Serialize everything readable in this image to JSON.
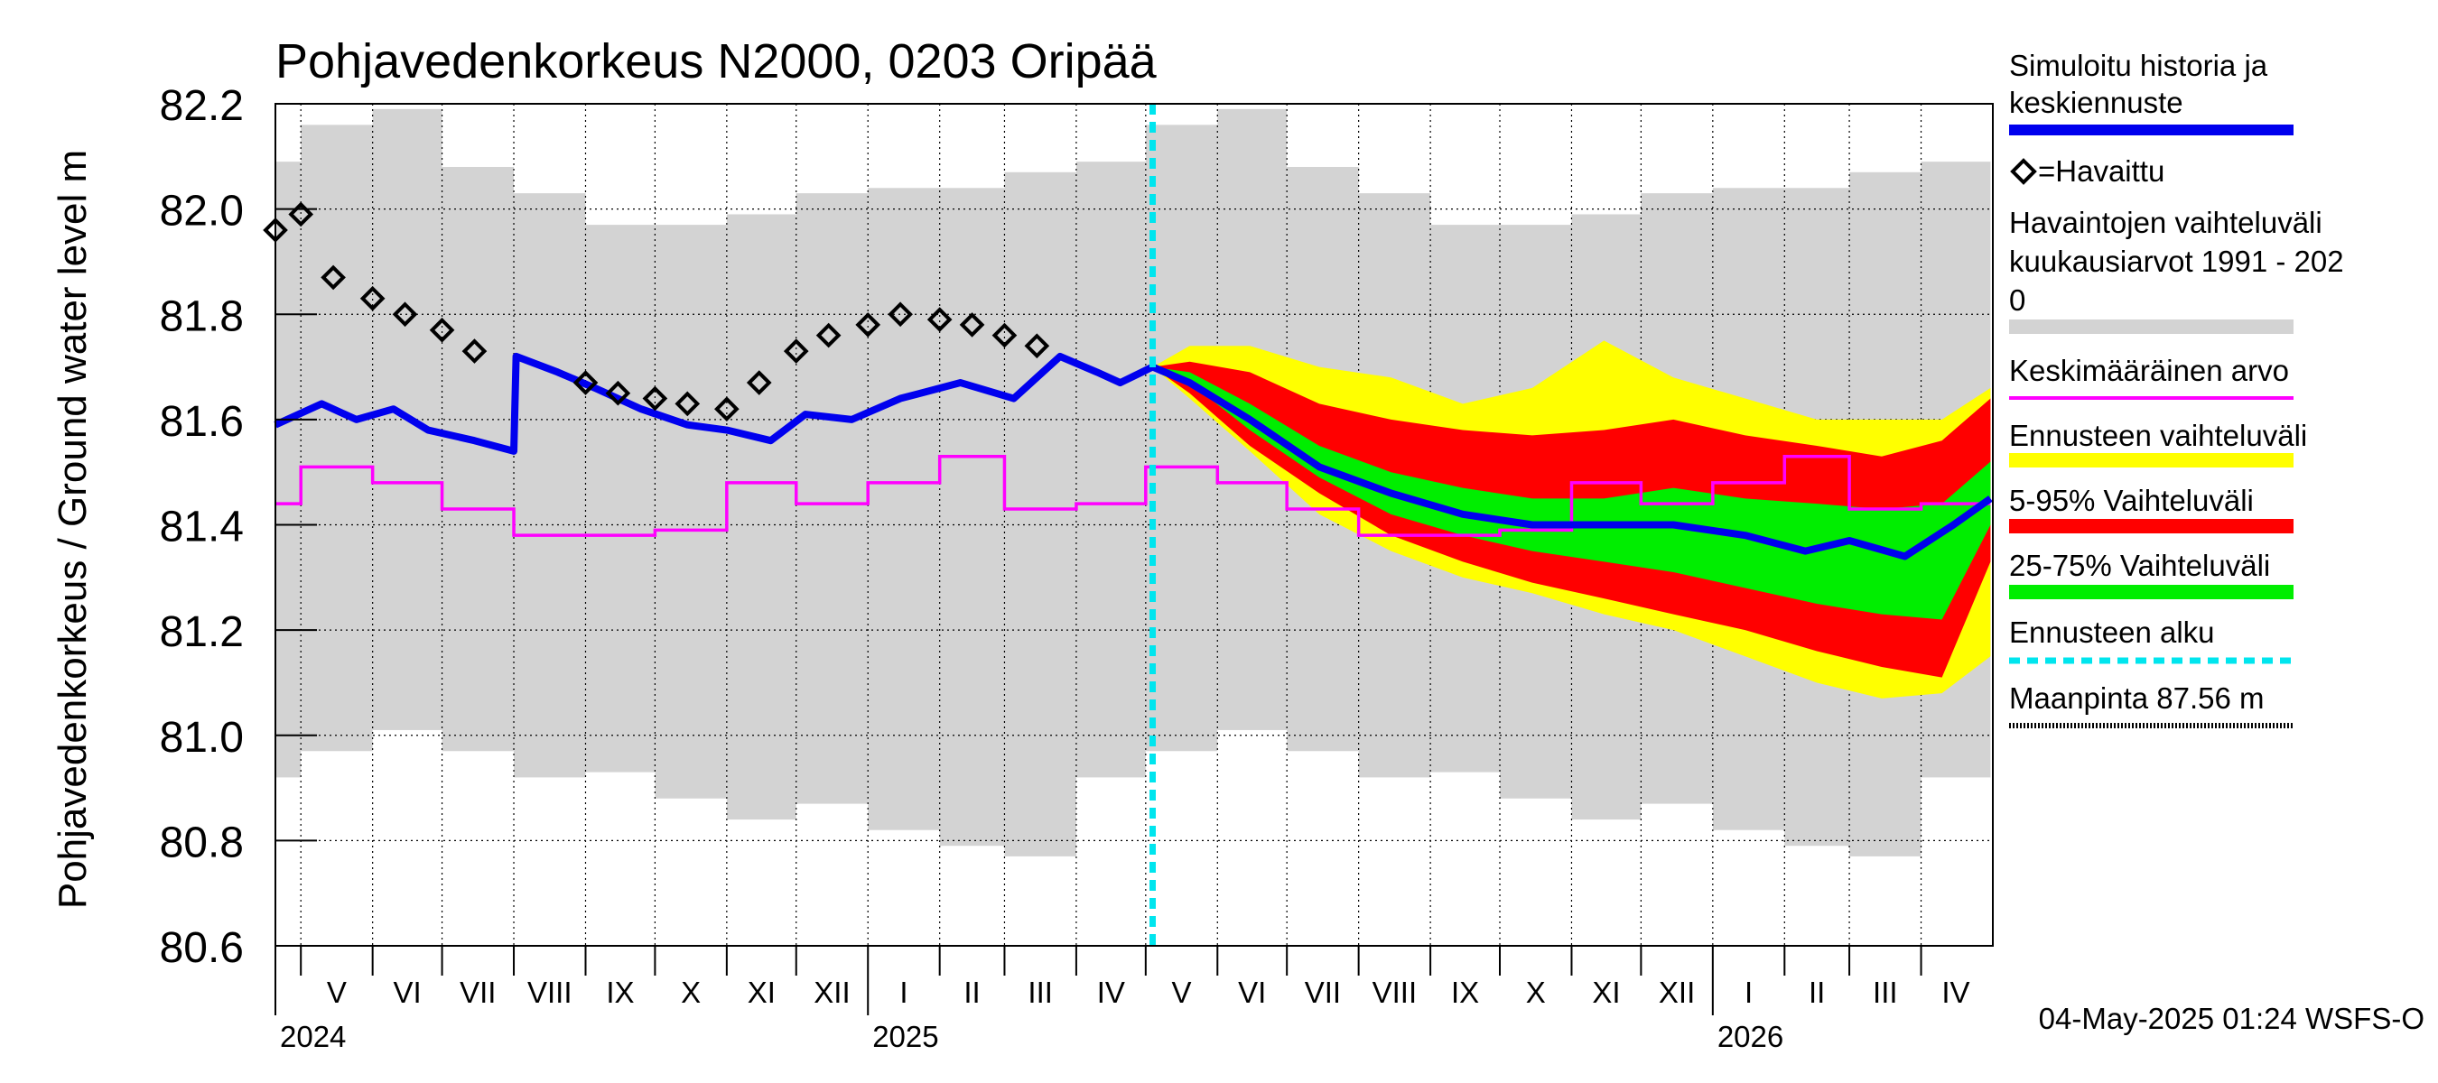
{
  "chart_data": {
    "type": "area",
    "title": "Pohjavedenkorkeus N2000, 0203 Oripää",
    "ylabel": "Pohjavedenkorkeus / Ground water level   m",
    "ylim": [
      80.6,
      82.2
    ],
    "yticks": [
      "80.6",
      "80.8",
      "81.0",
      "81.2",
      "81.4",
      "81.6",
      "81.8",
      "82.0",
      "82.2"
    ],
    "x_range": [
      "2024-04-20",
      "2026-05-02"
    ],
    "month_labels": [
      "V",
      "VI",
      "VII",
      "VIII",
      "IX",
      "X",
      "XI",
      "XII",
      "I",
      "II",
      "III",
      "IV",
      "V",
      "VI",
      "VII",
      "VIII",
      "IX",
      "X",
      "XI",
      "XII",
      "I",
      "II",
      "III",
      "IV"
    ],
    "year_labels": [
      "2024",
      "2025",
      "2026"
    ],
    "forecast_start": "2025-05-04",
    "footer": "04-May-2025 01:24 WSFS-O",
    "grid": true,
    "legend_position": "right",
    "legend": {
      "sim": "Simuloitu historia ja keskiennuste",
      "obs": "=Havaittu",
      "range1": "Havaintojen vaihteluväli",
      "range2": " kuukausiarvot 1991 - 202",
      "range3": "0",
      "mean": "Keskimääräinen arvo",
      "fc": "Ennusteen vaihteluväli",
      "p595": "5-95% Vaihteluväli",
      "p2575": "25-75% Vaihteluväli",
      "fcstart": "Ennusteen alku",
      "ground": "Maanpinta 87.56 m"
    },
    "colors": {
      "sim": "#0000ee",
      "obs": "#000000",
      "hist": "#d3d3d3",
      "mean": "#ff00ff",
      "fc": "#ffff00",
      "p595": "#ff0000",
      "p2575": "#00ee00",
      "fcstart": "#00e5ee"
    },
    "hist_range_monthly": [
      {
        "month": "2024-04",
        "min": 80.92,
        "max": 82.09
      },
      {
        "month": "2024-05",
        "min": 80.97,
        "max": 82.16
      },
      {
        "month": "2024-06",
        "min": 81.01,
        "max": 82.19
      },
      {
        "month": "2024-07",
        "min": 80.97,
        "max": 82.08
      },
      {
        "month": "2024-08",
        "min": 80.92,
        "max": 82.03
      },
      {
        "month": "2024-09",
        "min": 80.93,
        "max": 81.97
      },
      {
        "month": "2024-10",
        "min": 80.88,
        "max": 81.97
      },
      {
        "month": "2024-11",
        "min": 80.84,
        "max": 81.99
      },
      {
        "month": "2024-12",
        "min": 80.87,
        "max": 82.03
      },
      {
        "month": "2025-01",
        "min": 80.82,
        "max": 82.04
      },
      {
        "month": "2025-02",
        "min": 80.79,
        "max": 82.04
      },
      {
        "month": "2025-03",
        "min": 80.77,
        "max": 82.07
      },
      {
        "month": "2025-04",
        "min": 80.92,
        "max": 82.09
      },
      {
        "month": "2025-05",
        "min": 80.97,
        "max": 82.16
      },
      {
        "month": "2025-06",
        "min": 81.01,
        "max": 82.19
      },
      {
        "month": "2025-07",
        "min": 80.97,
        "max": 82.08
      },
      {
        "month": "2025-08",
        "min": 80.92,
        "max": 82.03
      },
      {
        "month": "2025-09",
        "min": 80.93,
        "max": 81.97
      },
      {
        "month": "2025-10",
        "min": 80.88,
        "max": 81.97
      },
      {
        "month": "2025-11",
        "min": 80.84,
        "max": 81.99
      },
      {
        "month": "2025-12",
        "min": 80.87,
        "max": 82.03
      },
      {
        "month": "2026-01",
        "min": 80.82,
        "max": 82.04
      },
      {
        "month": "2026-02",
        "min": 80.79,
        "max": 82.04
      },
      {
        "month": "2026-03",
        "min": 80.77,
        "max": 82.07
      },
      {
        "month": "2026-04",
        "min": 80.92,
        "max": 82.09
      }
    ],
    "mean_monthly": [
      {
        "month": "2024-04",
        "value": 81.44
      },
      {
        "month": "2024-05",
        "value": 81.51
      },
      {
        "month": "2024-06",
        "value": 81.48
      },
      {
        "month": "2024-07",
        "value": 81.43
      },
      {
        "month": "2024-08",
        "value": 81.38
      },
      {
        "month": "2024-09",
        "value": 81.38
      },
      {
        "month": "2024-10",
        "value": 81.39
      },
      {
        "month": "2024-11",
        "value": 81.48
      },
      {
        "month": "2024-12",
        "value": 81.44
      },
      {
        "month": "2025-01",
        "value": 81.48
      },
      {
        "month": "2025-02",
        "value": 81.53
      },
      {
        "month": "2025-03",
        "value": 81.43
      },
      {
        "month": "2025-04",
        "value": 81.44
      },
      {
        "month": "2025-05",
        "value": 81.51
      },
      {
        "month": "2025-06",
        "value": 81.48
      },
      {
        "month": "2025-07",
        "value": 81.43
      },
      {
        "month": "2025-08",
        "value": 81.38
      },
      {
        "month": "2025-09",
        "value": 81.38
      },
      {
        "month": "2025-10",
        "value": 81.39
      },
      {
        "month": "2025-11",
        "value": 81.48
      },
      {
        "month": "2025-12",
        "value": 81.44
      },
      {
        "month": "2026-01",
        "value": 81.48
      },
      {
        "month": "2026-02",
        "value": 81.53
      },
      {
        "month": "2026-03",
        "value": 81.43
      },
      {
        "month": "2026-04",
        "value": 81.44
      }
    ],
    "simulated": [
      {
        "date": "2024-04-20",
        "value": 81.59
      },
      {
        "date": "2024-05-10",
        "value": 81.63
      },
      {
        "date": "2024-05-25",
        "value": 81.6
      },
      {
        "date": "2024-06-10",
        "value": 81.62
      },
      {
        "date": "2024-06-25",
        "value": 81.58
      },
      {
        "date": "2024-07-15",
        "value": 81.56
      },
      {
        "date": "2024-08-01",
        "value": 81.54
      },
      {
        "date": "2024-08-02",
        "value": 81.72
      },
      {
        "date": "2024-08-20",
        "value": 81.69
      },
      {
        "date": "2024-09-05",
        "value": 81.66
      },
      {
        "date": "2024-09-25",
        "value": 81.62
      },
      {
        "date": "2024-10-15",
        "value": 81.59
      },
      {
        "date": "2024-11-01",
        "value": 81.58
      },
      {
        "date": "2024-11-20",
        "value": 81.56
      },
      {
        "date": "2024-12-05",
        "value": 81.61
      },
      {
        "date": "2024-12-25",
        "value": 81.6
      },
      {
        "date": "2025-01-15",
        "value": 81.64
      },
      {
        "date": "2025-02-10",
        "value": 81.67
      },
      {
        "date": "2025-03-05",
        "value": 81.64
      },
      {
        "date": "2025-03-25",
        "value": 81.72
      },
      {
        "date": "2025-04-10",
        "value": 81.69
      },
      {
        "date": "2025-04-20",
        "value": 81.67
      },
      {
        "date": "2025-05-04",
        "value": 81.7
      },
      {
        "date": "2025-05-20",
        "value": 81.67
      },
      {
        "date": "2025-06-15",
        "value": 81.6
      },
      {
        "date": "2025-07-15",
        "value": 81.51
      },
      {
        "date": "2025-08-15",
        "value": 81.46
      },
      {
        "date": "2025-09-15",
        "value": 81.42
      },
      {
        "date": "2025-10-15",
        "value": 81.4
      },
      {
        "date": "2025-11-15",
        "value": 81.4
      },
      {
        "date": "2025-12-15",
        "value": 81.4
      },
      {
        "date": "2026-01-15",
        "value": 81.38
      },
      {
        "date": "2026-02-10",
        "value": 81.35
      },
      {
        "date": "2026-03-01",
        "value": 81.37
      },
      {
        "date": "2026-03-25",
        "value": 81.34
      },
      {
        "date": "2026-04-15",
        "value": 81.4
      },
      {
        "date": "2026-05-01",
        "value": 81.45
      }
    ],
    "observed": [
      {
        "date": "2024-04-20",
        "value": 81.96
      },
      {
        "date": "2024-05-01",
        "value": 81.99
      },
      {
        "date": "2024-05-15",
        "value": 81.87
      },
      {
        "date": "2024-06-01",
        "value": 81.83
      },
      {
        "date": "2024-06-15",
        "value": 81.8
      },
      {
        "date": "2024-07-01",
        "value": 81.77
      },
      {
        "date": "2024-07-15",
        "value": 81.73
      },
      {
        "date": "2024-09-01",
        "value": 81.67
      },
      {
        "date": "2024-09-15",
        "value": 81.65
      },
      {
        "date": "2024-10-01",
        "value": 81.64
      },
      {
        "date": "2024-10-15",
        "value": 81.63
      },
      {
        "date": "2024-11-01",
        "value": 81.62
      },
      {
        "date": "2024-11-15",
        "value": 81.67
      },
      {
        "date": "2024-12-01",
        "value": 81.73
      },
      {
        "date": "2024-12-15",
        "value": 81.76
      },
      {
        "date": "2025-01-01",
        "value": 81.78
      },
      {
        "date": "2025-01-15",
        "value": 81.8
      },
      {
        "date": "2025-02-01",
        "value": 81.79
      },
      {
        "date": "2025-02-15",
        "value": 81.78
      },
      {
        "date": "2025-03-01",
        "value": 81.76
      },
      {
        "date": "2025-03-15",
        "value": 81.74
      }
    ],
    "forecast_bands": [
      {
        "date": "2025-05-04",
        "ymin": 81.7,
        "p5": 81.7,
        "p25": 81.7,
        "p75": 81.7,
        "p95": 81.7,
        "ymax": 81.7
      },
      {
        "date": "2025-05-20",
        "ymin": 81.64,
        "p5": 81.65,
        "p25": 81.67,
        "p75": 81.69,
        "p95": 81.71,
        "ymax": 81.74
      },
      {
        "date": "2025-06-15",
        "ymin": 81.54,
        "p5": 81.55,
        "p25": 81.58,
        "p75": 81.63,
        "p95": 81.69,
        "ymax": 81.74
      },
      {
        "date": "2025-07-15",
        "ymin": 81.42,
        "p5": 81.46,
        "p25": 81.49,
        "p75": 81.55,
        "p95": 81.63,
        "ymax": 81.7
      },
      {
        "date": "2025-08-15",
        "ymin": 81.35,
        "p5": 81.38,
        "p25": 81.42,
        "p75": 81.5,
        "p95": 81.6,
        "ymax": 81.68
      },
      {
        "date": "2025-09-15",
        "ymin": 81.3,
        "p5": 81.33,
        "p25": 81.38,
        "p75": 81.47,
        "p95": 81.58,
        "ymax": 81.63
      },
      {
        "date": "2025-10-15",
        "ymin": 81.27,
        "p5": 81.29,
        "p25": 81.35,
        "p75": 81.45,
        "p95": 81.57,
        "ymax": 81.66
      },
      {
        "date": "2025-11-15",
        "ymin": 81.23,
        "p5": 81.26,
        "p25": 81.33,
        "p75": 81.45,
        "p95": 81.58,
        "ymax": 81.75
      },
      {
        "date": "2025-12-15",
        "ymin": 81.2,
        "p5": 81.23,
        "p25": 81.31,
        "p75": 81.47,
        "p95": 81.6,
        "ymax": 81.68
      },
      {
        "date": "2026-01-15",
        "ymin": 81.15,
        "p5": 81.2,
        "p25": 81.28,
        "p75": 81.45,
        "p95": 81.57,
        "ymax": 81.64
      },
      {
        "date": "2026-02-15",
        "ymin": 81.1,
        "p5": 81.16,
        "p25": 81.25,
        "p75": 81.44,
        "p95": 81.55,
        "ymax": 81.6
      },
      {
        "date": "2026-03-15",
        "ymin": 81.07,
        "p5": 81.13,
        "p25": 81.23,
        "p75": 81.43,
        "p95": 81.53,
        "ymax": 81.6
      },
      {
        "date": "2026-04-10",
        "ymin": 81.08,
        "p5": 81.11,
        "p25": 81.22,
        "p75": 81.44,
        "p95": 81.56,
        "ymax": 81.6
      },
      {
        "date": "2026-05-01",
        "ymin": 81.15,
        "p5": 81.33,
        "p25": 81.4,
        "p75": 81.52,
        "p95": 81.64,
        "ymax": 81.66
      }
    ]
  }
}
